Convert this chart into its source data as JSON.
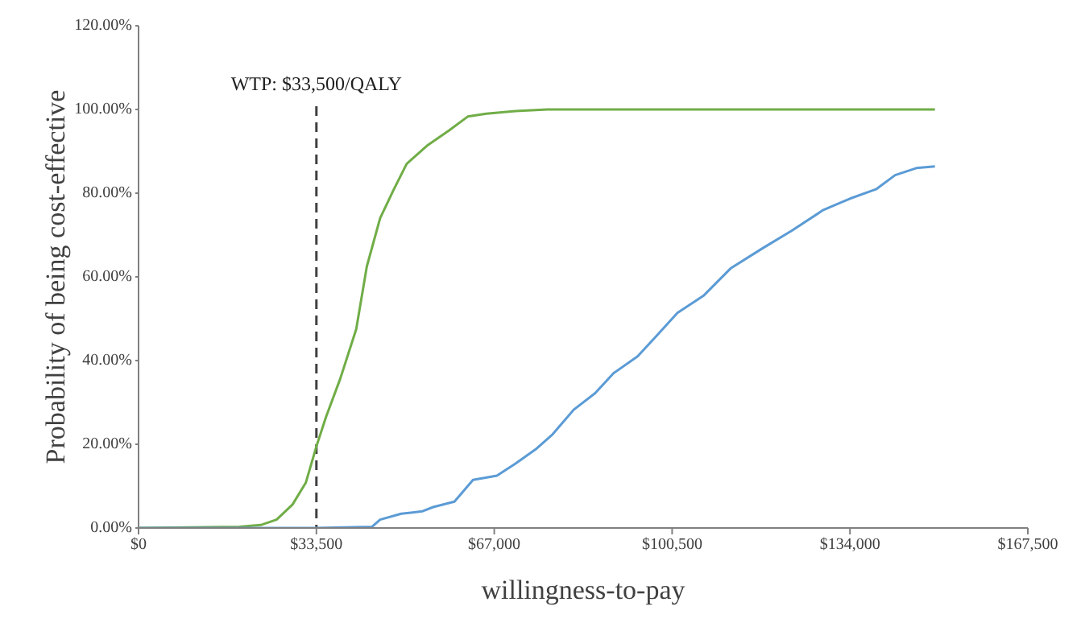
{
  "chart_data": {
    "type": "line",
    "xlabel": "willingness-to-pay",
    "ylabel": "Probability of being cost-effective",
    "xlim": [
      0,
      167500
    ],
    "xticks": [
      {
        "value": 0,
        "label": "$0"
      },
      {
        "value": 33500,
        "label": "$33,500"
      },
      {
        "value": 67000,
        "label": "$67,000"
      },
      {
        "value": 100500,
        "label": "$100,500"
      },
      {
        "value": 134000,
        "label": "$134,000"
      },
      {
        "value": 167500,
        "label": "$167,500"
      }
    ],
    "ylim": [
      0,
      120
    ],
    "yticks": [
      {
        "value": 0,
        "label": "0.00%"
      },
      {
        "value": 20,
        "label": "20.00%"
      },
      {
        "value": 40,
        "label": "40.00%"
      },
      {
        "value": 60,
        "label": "60.00%"
      },
      {
        "value": 80,
        "label": "80.00%"
      },
      {
        "value": 100,
        "label": "100.00%"
      },
      {
        "value": 120,
        "label": "120.00%"
      }
    ],
    "series": [
      {
        "color": "#70ad47",
        "x": [
          0,
          19000,
          23000,
          26000,
          29000,
          31500,
          33500,
          35300,
          38000,
          41000,
          43000,
          45500,
          48000,
          50500,
          54500,
          58500,
          62000,
          65500,
          71000,
          77000,
          150000
        ],
        "values": [
          0,
          0.3,
          0.7,
          2,
          5.6,
          10.8,
          19.5,
          26.5,
          35.7,
          47.5,
          62.5,
          74,
          80.7,
          87,
          91.5,
          95,
          98.3,
          99,
          99.6,
          100,
          100
        ]
      },
      {
        "color": "#5b9bd5",
        "x": [
          0,
          33500,
          44000,
          45500,
          49500,
          53500,
          55500,
          59500,
          63000,
          67500,
          71000,
          75000,
          78000,
          82000,
          86000,
          89500,
          94000,
          97500,
          101500,
          106500,
          111500,
          117500,
          123000,
          129000,
          134000,
          139000,
          142500,
          146500,
          150000
        ],
        "values": [
          0,
          0,
          0.3,
          2,
          3.4,
          4,
          5,
          6.3,
          11.5,
          12.5,
          15.4,
          19,
          22.4,
          28.3,
          32.2,
          37,
          41,
          45.8,
          51.4,
          55.6,
          62,
          66.8,
          71,
          76,
          78.7,
          81,
          84.3,
          86,
          86.4
        ]
      }
    ],
    "ref_lines": [
      {
        "axis": "x",
        "value": 33500,
        "label": "WTP: $33,500/QALY",
        "line_style": "dashed",
        "color": "#404040"
      }
    ],
    "grid": false,
    "legend": false,
    "marker": "none",
    "line_style": "solid"
  }
}
